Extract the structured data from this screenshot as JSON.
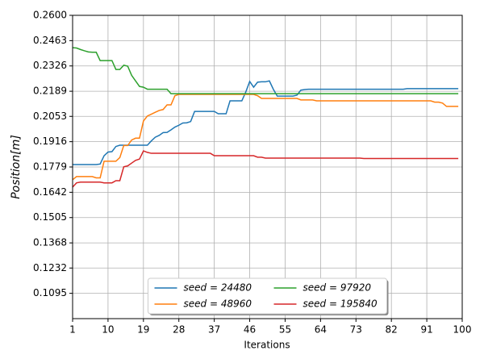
{
  "chart_data": {
    "type": "line",
    "xlabel": "Iterations",
    "ylabel": "Position[m]",
    "x": [
      1,
      2,
      3,
      4,
      5,
      6,
      7,
      8,
      9,
      10,
      11,
      12,
      13,
      14,
      15,
      16,
      17,
      18,
      19,
      20,
      21,
      22,
      23,
      24,
      25,
      26,
      27,
      28,
      29,
      30,
      31,
      32,
      33,
      34,
      35,
      36,
      37,
      38,
      39,
      40,
      41,
      42,
      43,
      44,
      45,
      46,
      47,
      48,
      49,
      50,
      51,
      52,
      53,
      54,
      55,
      56,
      57,
      58,
      59,
      60,
      61,
      62,
      63,
      64,
      65,
      66,
      67,
      68,
      69,
      70,
      71,
      72,
      73,
      74,
      75,
      76,
      77,
      78,
      79,
      80,
      81,
      82,
      83,
      84,
      85,
      86,
      87,
      88,
      89,
      90,
      91,
      92,
      93,
      94,
      95,
      96,
      97,
      98,
      99
    ],
    "series": [
      {
        "name": "seed = 24480",
        "color": "#1f77b4",
        "values": [
          0.1792,
          0.1792,
          0.1792,
          0.1792,
          0.1792,
          0.1792,
          0.1792,
          0.1795,
          0.184,
          0.186,
          0.1862,
          0.189,
          0.1897,
          0.1897,
          0.1897,
          0.1897,
          0.1897,
          0.1897,
          0.1897,
          0.1897,
          0.192,
          0.194,
          0.195,
          0.1965,
          0.1966,
          0.198,
          0.1995,
          0.2005,
          0.2017,
          0.2018,
          0.2025,
          0.208,
          0.208,
          0.208,
          0.208,
          0.208,
          0.208,
          0.2067,
          0.2067,
          0.2067,
          0.2137,
          0.2137,
          0.2137,
          0.2137,
          0.2185,
          0.2242,
          0.2211,
          0.2238,
          0.224,
          0.224,
          0.2245,
          0.22,
          0.2163,
          0.2163,
          0.2163,
          0.2163,
          0.2163,
          0.2168,
          0.2195,
          0.2198,
          0.22,
          0.22,
          0.22,
          0.22,
          0.22,
          0.22,
          0.22,
          0.22,
          0.22,
          0.22,
          0.22,
          0.22,
          0.22,
          0.22,
          0.22,
          0.22,
          0.22,
          0.22,
          0.22,
          0.22,
          0.22,
          0.22,
          0.22,
          0.22,
          0.22,
          0.2203,
          0.2203,
          0.2203,
          0.2203,
          0.2203,
          0.2203,
          0.2203,
          0.2203,
          0.2203,
          0.2203,
          0.2203,
          0.2203,
          0.2203,
          0.2203
        ]
      },
      {
        "name": "seed = 48960",
        "color": "#ff7f0e",
        "values": [
          0.171,
          0.1727,
          0.1727,
          0.1727,
          0.1727,
          0.1727,
          0.172,
          0.172,
          0.181,
          0.181,
          0.181,
          0.181,
          0.183,
          0.1895,
          0.1895,
          0.1925,
          0.1935,
          0.1935,
          0.2028,
          0.2055,
          0.2065,
          0.2075,
          0.2085,
          0.209,
          0.2115,
          0.2115,
          0.2165,
          0.2172,
          0.2172,
          0.2172,
          0.2172,
          0.2172,
          0.2172,
          0.2172,
          0.2172,
          0.2172,
          0.2172,
          0.2172,
          0.2172,
          0.2172,
          0.2172,
          0.2172,
          0.2172,
          0.2172,
          0.2172,
          0.2172,
          0.2172,
          0.2165,
          0.215,
          0.215,
          0.215,
          0.215,
          0.215,
          0.215,
          0.215,
          0.215,
          0.215,
          0.215,
          0.2142,
          0.2142,
          0.2142,
          0.2142,
          0.2137,
          0.2137,
          0.2137,
          0.2137,
          0.2137,
          0.2137,
          0.2137,
          0.2137,
          0.2137,
          0.2137,
          0.2137,
          0.2137,
          0.2137,
          0.2137,
          0.2137,
          0.2137,
          0.2137,
          0.2137,
          0.2137,
          0.2137,
          0.2137,
          0.2137,
          0.2137,
          0.2137,
          0.2137,
          0.2137,
          0.2137,
          0.2137,
          0.2137,
          0.2137,
          0.213,
          0.213,
          0.2125,
          0.2107,
          0.2107,
          0.2107,
          0.2107
        ]
      },
      {
        "name": "seed = 97920",
        "color": "#2ca02c",
        "values": [
          0.2425,
          0.2423,
          0.2415,
          0.2408,
          0.2402,
          0.24,
          0.24,
          0.2355,
          0.2355,
          0.2355,
          0.2355,
          0.2307,
          0.2307,
          0.233,
          0.2325,
          0.2275,
          0.2245,
          0.2215,
          0.2211,
          0.22,
          0.22,
          0.22,
          0.22,
          0.22,
          0.22,
          0.2176,
          0.2176,
          0.2176,
          0.2176,
          0.2176,
          0.2176,
          0.2176,
          0.2176,
          0.2176,
          0.2176,
          0.2176,
          0.2176,
          0.2176,
          0.2176,
          0.2176,
          0.2176,
          0.2176,
          0.2176,
          0.2176,
          0.2176,
          0.2176,
          0.2176,
          0.2176,
          0.2176,
          0.2176,
          0.2176,
          0.2176,
          0.2176,
          0.2176,
          0.2176,
          0.2176,
          0.2176,
          0.2176,
          0.2176,
          0.2176,
          0.2176,
          0.2176,
          0.2176,
          0.2176,
          0.2176,
          0.2176,
          0.2176,
          0.2176,
          0.2176,
          0.2176,
          0.2176,
          0.2176,
          0.2176,
          0.2176,
          0.2176,
          0.2176,
          0.2176,
          0.2176,
          0.2176,
          0.2176,
          0.2176,
          0.2176,
          0.2176,
          0.2176,
          0.2176,
          0.2176,
          0.2176,
          0.2176,
          0.2176,
          0.2176,
          0.2176,
          0.2176,
          0.2176,
          0.2176,
          0.2176,
          0.2176,
          0.2176,
          0.2176,
          0.2176
        ]
      },
      {
        "name": "seed = 195840",
        "color": "#d62728",
        "values": [
          0.167,
          0.1693,
          0.1697,
          0.1697,
          0.1697,
          0.1697,
          0.1697,
          0.1697,
          0.1693,
          0.1693,
          0.1693,
          0.1705,
          0.1705,
          0.178,
          0.1785,
          0.18,
          0.1815,
          0.1822,
          0.1866,
          0.1858,
          0.1853,
          0.1853,
          0.1853,
          0.1853,
          0.1853,
          0.1853,
          0.1853,
          0.1853,
          0.1853,
          0.1853,
          0.1853,
          0.1853,
          0.1853,
          0.1853,
          0.1853,
          0.1853,
          0.184,
          0.184,
          0.184,
          0.184,
          0.184,
          0.184,
          0.184,
          0.184,
          0.184,
          0.184,
          0.184,
          0.1832,
          0.1832,
          0.1827,
          0.1827,
          0.1827,
          0.1827,
          0.1827,
          0.1827,
          0.1827,
          0.1827,
          0.1827,
          0.1827,
          0.1827,
          0.1827,
          0.1827,
          0.1827,
          0.1827,
          0.1827,
          0.1827,
          0.1827,
          0.1827,
          0.1827,
          0.1827,
          0.1827,
          0.1827,
          0.1827,
          0.1827,
          0.1825,
          0.1825,
          0.1825,
          0.1825,
          0.1825,
          0.1825,
          0.1825,
          0.1825,
          0.1825,
          0.1825,
          0.1825,
          0.1825,
          0.1825,
          0.1825,
          0.1825,
          0.1825,
          0.1825,
          0.1825,
          0.1825,
          0.1825,
          0.1825,
          0.1825,
          0.1825,
          0.1825,
          0.1825
        ]
      }
    ],
    "xlim": [
      1,
      100
    ],
    "xticks": [
      1,
      10,
      19,
      28,
      37,
      46,
      55,
      64,
      73,
      82,
      91,
      100
    ],
    "ylim": [
      0.0958,
      0.26
    ],
    "yticks": [
      0.1095,
      0.1232,
      0.1368,
      0.1505,
      0.1642,
      0.1779,
      0.1916,
      0.2053,
      0.2189,
      0.2326,
      0.2463,
      {
        "value": 0.26,
        "label": "0.2600"
      }
    ],
    "grid": true,
    "legend": "lower center"
  }
}
